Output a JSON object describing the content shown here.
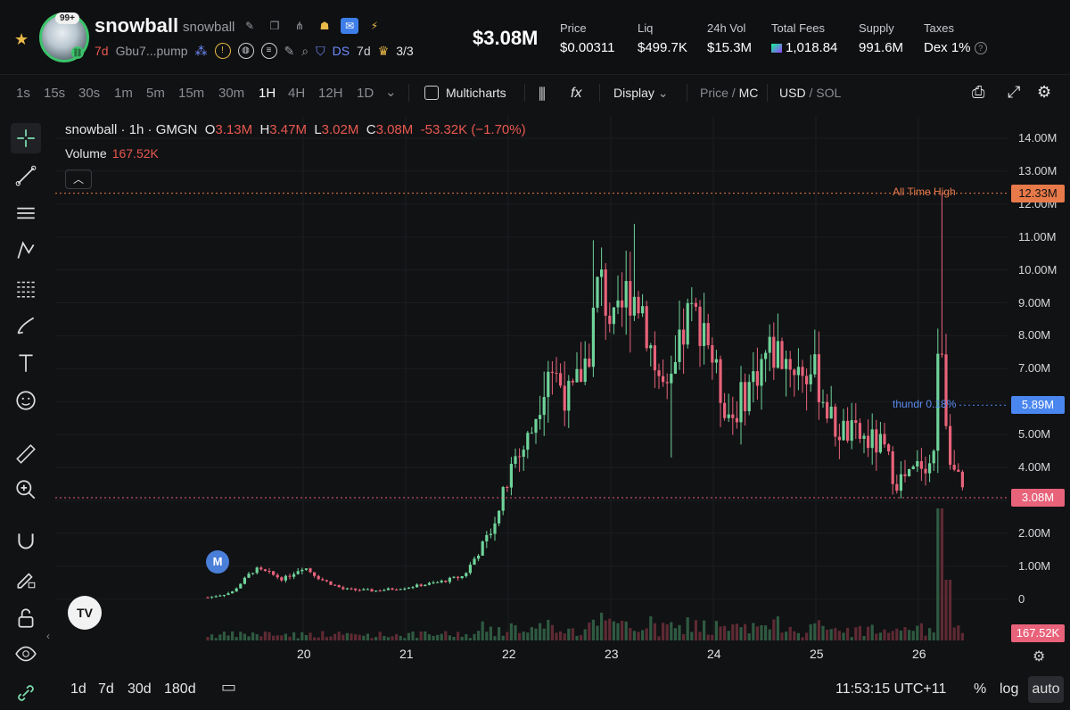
{
  "token": {
    "name": "snowball",
    "symbol": "snowball",
    "avatar_badge": "99+",
    "age": "7d",
    "address": "Gbu7...pump",
    "ds_label": "DS",
    "ds_age": "7d",
    "crown_count": "3/3"
  },
  "market_cap": "$3.08M",
  "stats": [
    {
      "label": "Price",
      "value": "$0.00311"
    },
    {
      "label": "Liq",
      "value": "$499.7K"
    },
    {
      "label": "24h Vol",
      "value": "$15.3M"
    },
    {
      "label": "Total Fees",
      "value": "1,018.84"
    },
    {
      "label": "Supply",
      "value": "991.6M"
    },
    {
      "label": "Taxes",
      "value": "Dex 1%"
    }
  ],
  "timeframes": [
    "1s",
    "15s",
    "30s",
    "1m",
    "5m",
    "15m",
    "30m",
    "1H",
    "4H",
    "12H",
    "1D"
  ],
  "active_timeframe": "1H",
  "toolbar": {
    "multicharts": "Multicharts",
    "display": "Display",
    "price": "Price",
    "mc": "MC",
    "usd": "USD",
    "sol": "SOL"
  },
  "legend": {
    "title": "snowball · 1h · GMGN",
    "o_label": "O",
    "o_val": "3.13M",
    "h_label": "H",
    "h_val": "3.47M",
    "l_label": "L",
    "l_val": "3.02M",
    "c_label": "C",
    "c_val": "3.08M",
    "change": "-53.32K (−1.70%)",
    "volume_label": "Volume",
    "volume_val": "167.52K"
  },
  "y_axis": [
    "14.00M",
    "13.00M",
    "12.00M",
    "11.00M",
    "10.00M",
    "9.00M",
    "8.00M",
    "7.00M",
    "6.00M",
    "5.00M",
    "4.00M",
    "3.00M",
    "2.00M",
    "1.00M",
    "0"
  ],
  "x_axis": [
    "20",
    "21",
    "22",
    "23",
    "24",
    "25",
    "26"
  ],
  "price_tags": {
    "ath": "12.33M",
    "ath_label": "All Time High",
    "thundr": "5.89M",
    "thundr_label": "thundr 0.18%",
    "current": "3.08M",
    "volume": "167.52K"
  },
  "marker_m": "M",
  "tv_logo": "TV",
  "bottom": {
    "ranges": [
      "1d",
      "7d",
      "30d",
      "180d"
    ],
    "clock": "11:53:15 UTC+11",
    "pct": "%",
    "log": "log",
    "auto": "auto"
  },
  "colors": {
    "up": "#6fd39a",
    "down": "#e8637a",
    "accent_blue": "#4a7fd9",
    "ath_orange": "#e87a4a"
  },
  "chart_data": {
    "type": "candlestick",
    "title": "snowball · 1h · GMGN",
    "ylim": [
      0,
      14500000
    ],
    "y_unit": "market cap USD",
    "series": [
      {
        "name": "Volume",
        "current": 167520
      }
    ],
    "ohlc_markers": {
      "open": 3130000,
      "high": 3470000,
      "low": 3020000,
      "close": 3080000
    },
    "all_time_high": 12330000,
    "candles_approx": [
      {
        "x": "19",
        "o": 0.05,
        "h": 0.1,
        "l": 0.02,
        "c": 0.08
      },
      {
        "x": "19.5",
        "o": 0.4,
        "h": 1.1,
        "l": 0.3,
        "c": 0.9
      },
      {
        "x": "20",
        "o": 0.7,
        "h": 1.2,
        "l": 0.5,
        "c": 1.0
      },
      {
        "x": "20.5",
        "o": 0.4,
        "h": 0.5,
        "l": 0.2,
        "c": 0.3
      },
      {
        "x": "21",
        "o": 0.25,
        "h": 0.4,
        "l": 0.15,
        "c": 0.3
      },
      {
        "x": "21.5",
        "o": 0.5,
        "h": 0.7,
        "l": 0.4,
        "c": 0.6
      },
      {
        "x": "21.8",
        "o": 1.5,
        "h": 2.0,
        "l": 1.0,
        "c": 1.8
      },
      {
        "x": "22",
        "o": 3.0,
        "h": 4.5,
        "l": 2.8,
        "c": 4.0
      },
      {
        "x": "22.5",
        "o": 6.0,
        "h": 8.0,
        "l": 5.5,
        "c": 7.2
      },
      {
        "x": "22.9",
        "o": 8.0,
        "h": 10.9,
        "l": 7.0,
        "c": 9.8
      },
      {
        "x": "23.3",
        "o": 9.5,
        "h": 11.4,
        "l": 8.0,
        "c": 8.5
      },
      {
        "x": "23.7",
        "o": 6.0,
        "h": 9.0,
        "l": 4.2,
        "c": 8.7
      },
      {
        "x": "24",
        "o": 7.0,
        "h": 9.0,
        "l": 5.5,
        "c": 6.0
      },
      {
        "x": "24.5",
        "o": 8.0,
        "h": 8.7,
        "l": 6.0,
        "c": 7.5
      },
      {
        "x": "25",
        "o": 7.0,
        "h": 7.5,
        "l": 5.5,
        "c": 6.2
      },
      {
        "x": "25.5",
        "o": 5.0,
        "h": 5.5,
        "l": 4.3,
        "c": 4.8
      },
      {
        "x": "25.9",
        "o": 3.8,
        "h": 4.3,
        "l": 3.4,
        "c": 3.6
      },
      {
        "x": "26.2",
        "o": 4.0,
        "h": 12.3,
        "l": 3.5,
        "c": 8.7
      },
      {
        "x": "26.4",
        "o": 3.13,
        "h": 3.47,
        "l": 3.02,
        "c": 3.08
      }
    ]
  }
}
